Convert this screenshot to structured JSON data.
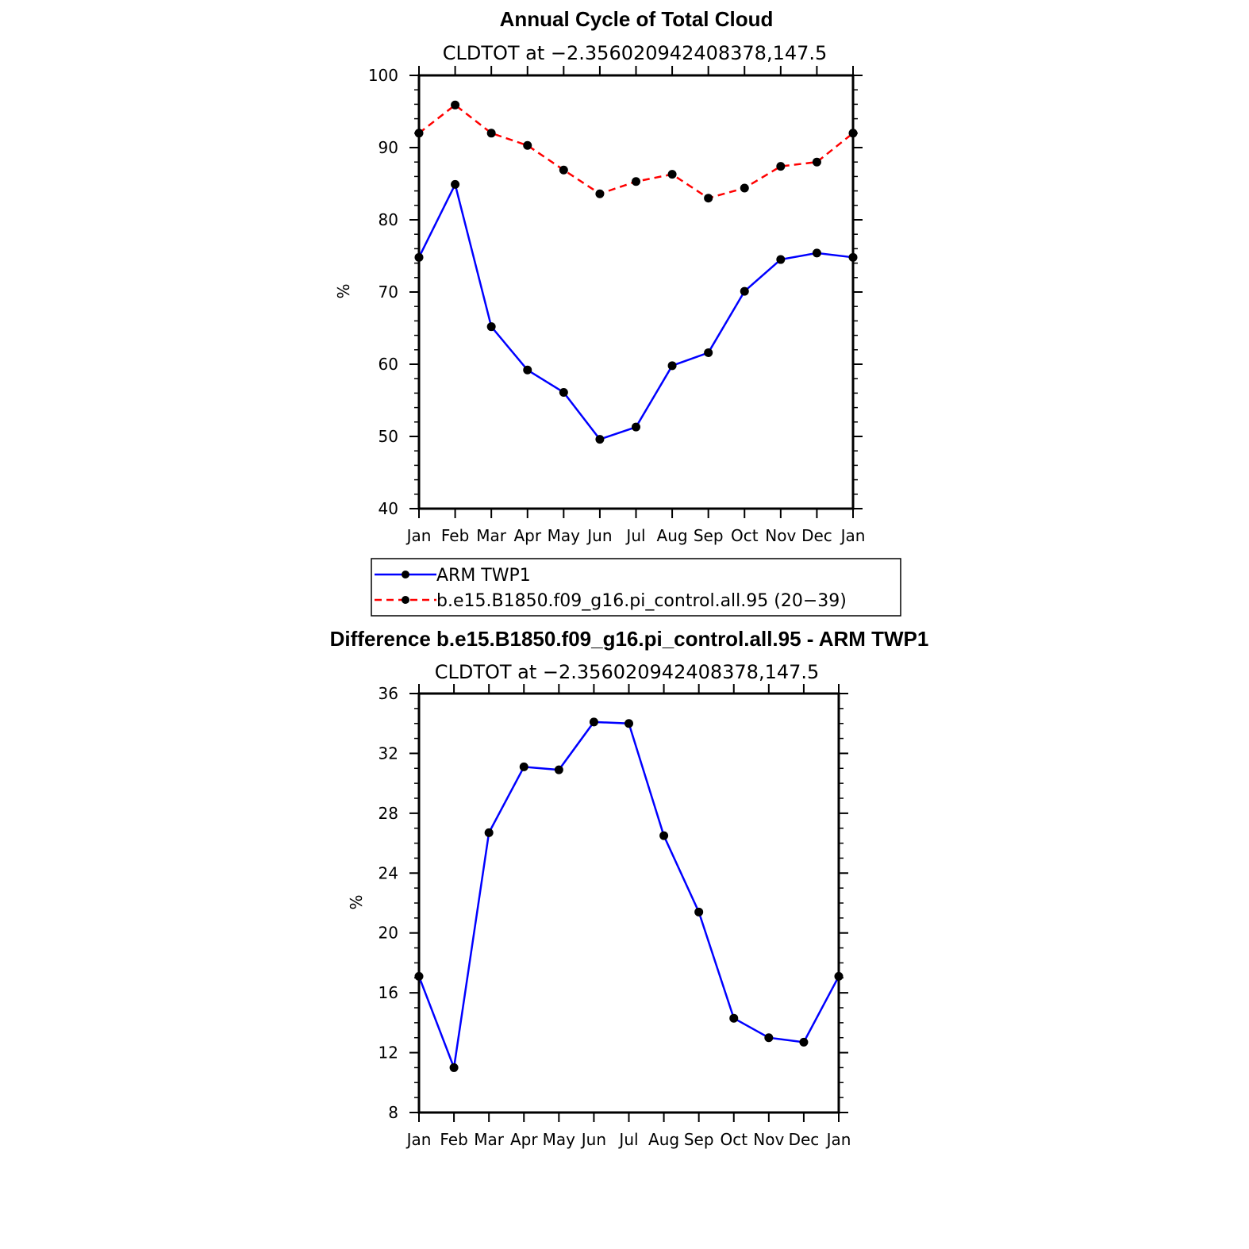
{
  "chart_data": [
    {
      "type": "line",
      "title": "Annual Cycle of Total Cloud",
      "subtitle": "CLDTOT at −2.356020942408378,147.5",
      "ylabel": "%",
      "ylim": [
        40,
        100
      ],
      "yticks": [
        "40",
        "50",
        "60",
        "70",
        "80",
        "90",
        "100"
      ],
      "categories": [
        "Jan",
        "Feb",
        "Mar",
        "Apr",
        "May",
        "Jun",
        "Jul",
        "Aug",
        "Sep",
        "Oct",
        "Nov",
        "Dec",
        "Jan"
      ],
      "series": [
        {
          "name": "ARM  TWP1",
          "color": "#0000ff",
          "dashed": false,
          "values": [
            74.8,
            84.9,
            65.2,
            59.2,
            56.1,
            49.6,
            51.3,
            59.8,
            61.6,
            70.1,
            74.5,
            75.4,
            74.8
          ]
        },
        {
          "name": "b.e15.B1850.f09_g16.pi_control.all.95 (20−39)",
          "color": "#ff0000",
          "dashed": true,
          "values": [
            92.0,
            95.9,
            92.0,
            90.3,
            86.9,
            83.6,
            85.3,
            86.3,
            83.0,
            84.4,
            87.4,
            88.0,
            92.0
          ]
        }
      ],
      "legend": "below"
    },
    {
      "type": "line",
      "title": "Difference b.e15.B1850.f09_g16.pi_control.all.95 - ARM TWP1",
      "subtitle": "CLDTOT at −2.356020942408378,147.5",
      "ylabel": "%",
      "ylim": [
        8,
        36
      ],
      "yticks": [
        "8",
        "12",
        "16",
        "20",
        "24",
        "28",
        "32",
        "36"
      ],
      "categories": [
        "Jan",
        "Feb",
        "Mar",
        "Apr",
        "May",
        "Jun",
        "Jul",
        "Aug",
        "Sep",
        "Oct",
        "Nov",
        "Dec",
        "Jan"
      ],
      "series": [
        {
          "color": "#0000ff",
          "dashed": false,
          "values": [
            17.1,
            11.0,
            26.7,
            31.1,
            30.9,
            34.1,
            34.0,
            26.5,
            21.4,
            14.3,
            13.0,
            12.7,
            17.1
          ]
        }
      ]
    }
  ]
}
